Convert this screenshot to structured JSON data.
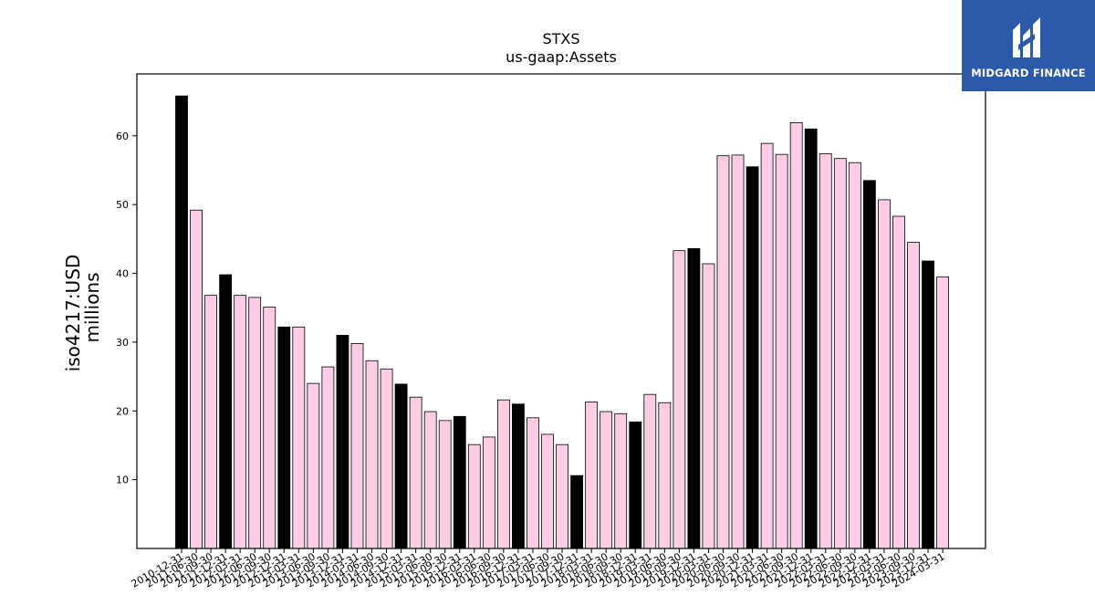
{
  "brand": {
    "name": "MIDGARD FINANCE",
    "bg_color": "#2c5aab"
  },
  "chart_data": {
    "type": "bar",
    "title": "STXS",
    "subtitle": "us-gaap:Assets",
    "ylabel": "iso4217:USD",
    "ylabel2": "millions",
    "xlabel": "",
    "ylim": [
      0,
      69
    ],
    "yticks": [
      10,
      20,
      30,
      40,
      50,
      60
    ],
    "grid": false,
    "colors": {
      "annual": "#000000",
      "quarterly": "#ffcce6",
      "edge": "#000000"
    },
    "categories": [
      "2010-12-31",
      "2011-06-30",
      "2011-09-30",
      "2011-12-31",
      "2012-03-31",
      "2012-06-30",
      "2012-09-30",
      "2012-12-31",
      "2013-03-31",
      "2013-06-30",
      "2013-09-30",
      "2013-12-31",
      "2014-03-31",
      "2014-06-30",
      "2014-09-30",
      "2014-12-31",
      "2015-03-31",
      "2015-06-30",
      "2015-09-30",
      "2015-12-31",
      "2016-03-31",
      "2016-06-30",
      "2016-09-30",
      "2016-12-31",
      "2017-03-31",
      "2017-06-30",
      "2017-09-30",
      "2017-12-31",
      "2018-03-31",
      "2018-06-30",
      "2018-09-30",
      "2018-12-31",
      "2019-03-31",
      "2019-06-30",
      "2019-09-30",
      "2019-12-31",
      "2020-03-31",
      "2020-06-30",
      "2020-09-30",
      "2020-12-31",
      "2021-03-31",
      "2021-06-30",
      "2021-09-30",
      "2021-12-31",
      "2022-03-31",
      "2022-06-30",
      "2022-09-30",
      "2022-12-31",
      "2023-03-31",
      "2023-06-30",
      "2023-09-30",
      "2023-12-31",
      "2024-03-31"
    ],
    "values": [
      65.8,
      49.2,
      36.8,
      39.8,
      36.8,
      36.5,
      35.1,
      32.2,
      32.2,
      24.0,
      26.4,
      31.0,
      29.8,
      27.3,
      26.1,
      23.9,
      22.0,
      19.9,
      18.6,
      19.2,
      15.1,
      16.2,
      21.6,
      21.0,
      19.0,
      16.6,
      15.1,
      10.6,
      21.3,
      19.9,
      19.6,
      18.4,
      22.4,
      21.2,
      43.3,
      43.6,
      41.4,
      57.1,
      57.2,
      55.5,
      58.9,
      57.3,
      61.9,
      61.0,
      57.4,
      56.7,
      56.1,
      53.5,
      50.7,
      48.3,
      44.5,
      41.8,
      39.5
    ],
    "annual": [
      true,
      false,
      false,
      true,
      false,
      false,
      false,
      true,
      false,
      false,
      false,
      true,
      false,
      false,
      false,
      true,
      false,
      false,
      false,
      true,
      false,
      false,
      false,
      true,
      false,
      false,
      false,
      true,
      false,
      false,
      false,
      true,
      false,
      false,
      false,
      true,
      false,
      false,
      false,
      true,
      false,
      false,
      false,
      true,
      false,
      false,
      false,
      true,
      false,
      false,
      false,
      true,
      false
    ]
  }
}
